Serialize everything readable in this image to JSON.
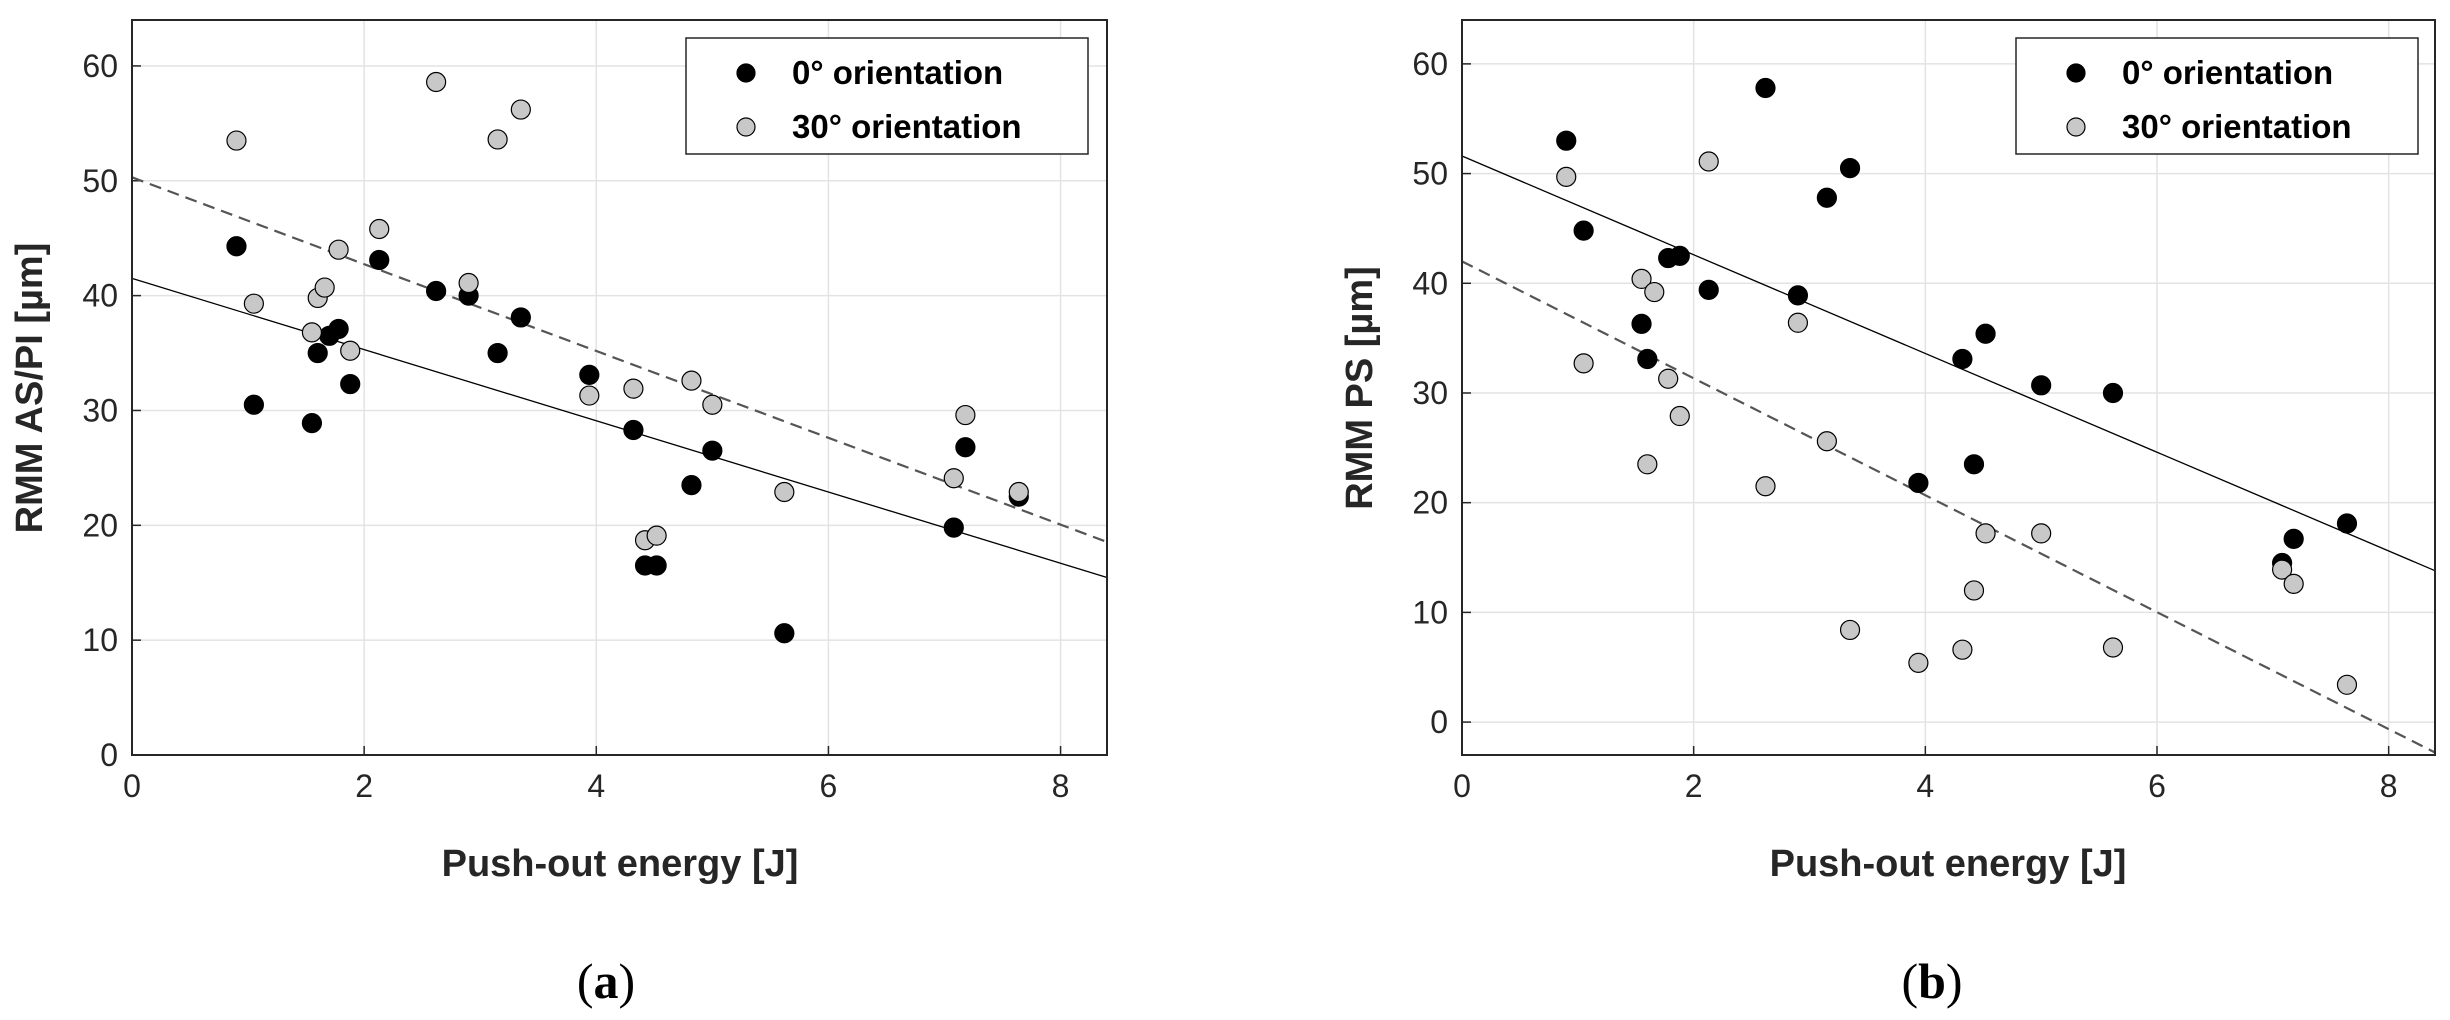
{
  "chart_data": [
    {
      "type": "scatter",
      "panel": "a",
      "caption_open": "(",
      "caption_letter": "a",
      "caption_close": ")",
      "xlabel": "Push-out energy [J]",
      "ylabel": "RMM AS/PI [µm]",
      "xlim": [
        0,
        8.4
      ],
      "ylim": [
        0,
        64
      ],
      "xticks": [
        0,
        2,
        4,
        6,
        8
      ],
      "yticks": [
        0,
        10,
        20,
        30,
        40,
        50,
        60
      ],
      "grid": true,
      "legend_position": "top-right",
      "series": [
        {
          "name": "0° orientation",
          "marker_color": "#000000",
          "points": [
            [
              0.9,
              44.3
            ],
            [
              1.05,
              30.5
            ],
            [
              1.55,
              28.9
            ],
            [
              1.6,
              35.0
            ],
            [
              1.7,
              36.5
            ],
            [
              1.78,
              37.1
            ],
            [
              1.88,
              32.3
            ],
            [
              2.13,
              43.1
            ],
            [
              2.62,
              40.4
            ],
            [
              2.9,
              40.0
            ],
            [
              3.15,
              35.0
            ],
            [
              3.35,
              38.1
            ],
            [
              3.94,
              33.1
            ],
            [
              4.32,
              28.3
            ],
            [
              4.42,
              16.5
            ],
            [
              4.52,
              16.5
            ],
            [
              4.82,
              23.5
            ],
            [
              5.0,
              26.5
            ],
            [
              5.62,
              10.6
            ],
            [
              7.08,
              19.8
            ],
            [
              7.18,
              26.8
            ],
            [
              7.64,
              22.5
            ]
          ],
          "fit": {
            "intercept": 41.5,
            "slope": -3.1,
            "style": "solid"
          }
        },
        {
          "name": "30° orientation",
          "marker_color": "#c8c8c8",
          "points": [
            [
              0.9,
              53.5
            ],
            [
              1.05,
              39.3
            ],
            [
              1.55,
              36.8
            ],
            [
              1.6,
              39.8
            ],
            [
              1.66,
              40.7
            ],
            [
              1.78,
              44.0
            ],
            [
              1.88,
              35.2
            ],
            [
              2.13,
              45.8
            ],
            [
              2.62,
              58.6
            ],
            [
              2.9,
              41.1
            ],
            [
              3.15,
              53.6
            ],
            [
              3.35,
              56.2
            ],
            [
              3.94,
              31.3
            ],
            [
              4.32,
              31.9
            ],
            [
              4.42,
              18.7
            ],
            [
              4.52,
              19.1
            ],
            [
              4.82,
              32.6
            ],
            [
              5.0,
              30.5
            ],
            [
              5.62,
              22.9
            ],
            [
              7.08,
              24.1
            ],
            [
              7.18,
              29.6
            ],
            [
              7.64,
              22.9
            ]
          ],
          "fit": {
            "intercept": 50.3,
            "slope": -3.78,
            "style": "dashed"
          }
        }
      ]
    },
    {
      "type": "scatter",
      "panel": "b",
      "caption_open": "(",
      "caption_letter": "b",
      "caption_close": ")",
      "xlabel": "Push-out energy [J]",
      "ylabel": "RMM PS [µm]",
      "xlim": [
        0,
        8.4
      ],
      "ylim": [
        -3,
        64
      ],
      "xticks": [
        0,
        2,
        4,
        6,
        8
      ],
      "yticks": [
        0,
        10,
        20,
        30,
        40,
        50,
        60
      ],
      "grid": true,
      "legend_position": "top-right",
      "series": [
        {
          "name": "0° orientation",
          "marker_color": "#000000",
          "points": [
            [
              0.9,
              53.0
            ],
            [
              1.05,
              44.8
            ],
            [
              1.55,
              36.3
            ],
            [
              1.6,
              33.1
            ],
            [
              1.78,
              42.3
            ],
            [
              1.88,
              42.5
            ],
            [
              2.13,
              39.4
            ],
            [
              2.62,
              57.8
            ],
            [
              2.9,
              38.9
            ],
            [
              3.15,
              47.8
            ],
            [
              3.35,
              50.5
            ],
            [
              3.94,
              21.8
            ],
            [
              4.32,
              33.1
            ],
            [
              4.42,
              23.5
            ],
            [
              4.52,
              35.4
            ],
            [
              5.0,
              30.7
            ],
            [
              5.62,
              30.0
            ],
            [
              7.08,
              14.5
            ],
            [
              7.18,
              16.7
            ],
            [
              7.64,
              18.1
            ]
          ],
          "fit": {
            "intercept": 51.6,
            "slope": -4.5,
            "style": "solid"
          }
        },
        {
          "name": "30° orientation",
          "marker_color": "#c8c8c8",
          "points": [
            [
              0.9,
              49.7
            ],
            [
              1.05,
              32.7
            ],
            [
              1.55,
              40.4
            ],
            [
              1.6,
              23.5
            ],
            [
              1.66,
              39.2
            ],
            [
              1.78,
              31.3
            ],
            [
              1.88,
              27.9
            ],
            [
              2.13,
              51.1
            ],
            [
              2.62,
              21.5
            ],
            [
              2.9,
              36.4
            ],
            [
              3.15,
              25.6
            ],
            [
              3.35,
              8.4
            ],
            [
              3.94,
              5.4
            ],
            [
              4.32,
              6.6
            ],
            [
              4.42,
              12.0
            ],
            [
              4.52,
              17.2
            ],
            [
              5.0,
              17.2
            ],
            [
              5.62,
              6.8
            ],
            [
              7.08,
              13.9
            ],
            [
              7.18,
              12.6
            ],
            [
              7.64,
              3.4
            ]
          ],
          "fit": {
            "intercept": 42.0,
            "slope": -5.33,
            "style": "dashed"
          }
        }
      ]
    }
  ]
}
